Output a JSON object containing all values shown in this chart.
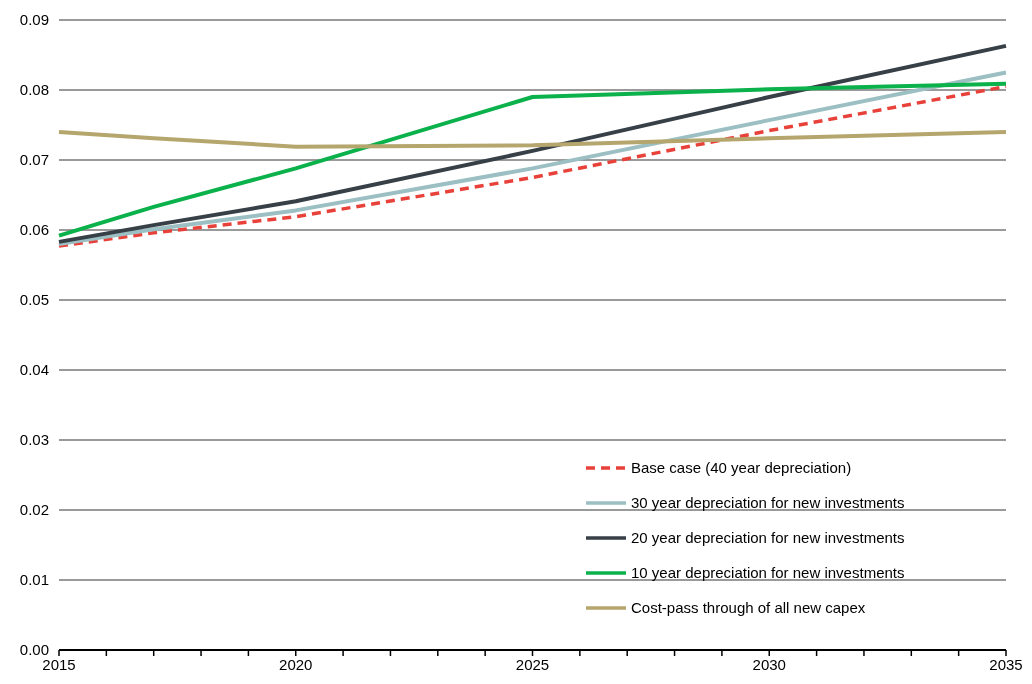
{
  "chart_data": {
    "type": "line",
    "x": [
      2015,
      2017,
      2020,
      2025,
      2030,
      2035
    ],
    "series": [
      {
        "name": "Base case (40 year depreciation)",
        "color": "#e8413a",
        "line_style": "dashed",
        "values": [
          0.0577,
          0.0596,
          0.0619,
          0.0675,
          0.0742,
          0.0805
        ]
      },
      {
        "name": "30 year depreciation for new investments",
        "color": "#9bbfc2",
        "values": [
          0.058,
          0.0601,
          0.0628,
          0.0688,
          0.0757,
          0.0825
        ]
      },
      {
        "name": "20 year depreciation for new investments",
        "color": "#373f47",
        "values": [
          0.0583,
          0.0607,
          0.0641,
          0.0713,
          0.079,
          0.0863
        ]
      },
      {
        "name": "10 year depreciation for new investments",
        "color": "#0bb14b",
        "values": [
          0.0592,
          0.0633,
          0.0688,
          0.079,
          0.0801,
          0.0809
        ]
      },
      {
        "name": "Cost-pass through of all new capex",
        "color": "#b5a66e",
        "values": [
          0.074,
          0.0731,
          0.0719,
          0.0721,
          0.0731,
          0.074
        ]
      }
    ],
    "xlim": [
      2015,
      2035
    ],
    "xticks": [
      2015,
      {
        "value": 2016,
        "label": null
      },
      {
        "value": 2017,
        "label": null
      },
      {
        "value": 2018,
        "label": null
      },
      {
        "value": 2019,
        "label": null
      },
      2020,
      {
        "value": 2021,
        "label": null
      },
      {
        "value": 2022,
        "label": null
      },
      {
        "value": 2023,
        "label": null
      },
      {
        "value": 2024,
        "label": null
      },
      2025,
      {
        "value": 2026,
        "label": null
      },
      {
        "value": 2027,
        "label": null
      },
      {
        "value": 2028,
        "label": null
      },
      {
        "value": 2029,
        "label": null
      },
      2030,
      {
        "value": 2031,
        "label": null
      },
      {
        "value": 2032,
        "label": null
      },
      {
        "value": 2033,
        "label": null
      },
      {
        "value": 2034,
        "label": null
      },
      2035
    ],
    "ylim": [
      0,
      0.09
    ],
    "yticks": [
      {
        "value": 0,
        "label": "0.00"
      },
      {
        "value": 0.01,
        "label": "0.01"
      },
      {
        "value": 0.02,
        "label": "0.02"
      },
      {
        "value": 0.03,
        "label": "0.03"
      },
      {
        "value": 0.04,
        "label": "0.04"
      },
      {
        "value": 0.05,
        "label": "0.05"
      },
      {
        "value": 0.06,
        "label": "0.06"
      },
      {
        "value": 0.07,
        "label": "0.07"
      },
      {
        "value": 0.08,
        "label": "0.08"
      },
      {
        "value": 0.09,
        "label": "0.09"
      }
    ],
    "grid": "y",
    "legend": "bottom right"
  }
}
